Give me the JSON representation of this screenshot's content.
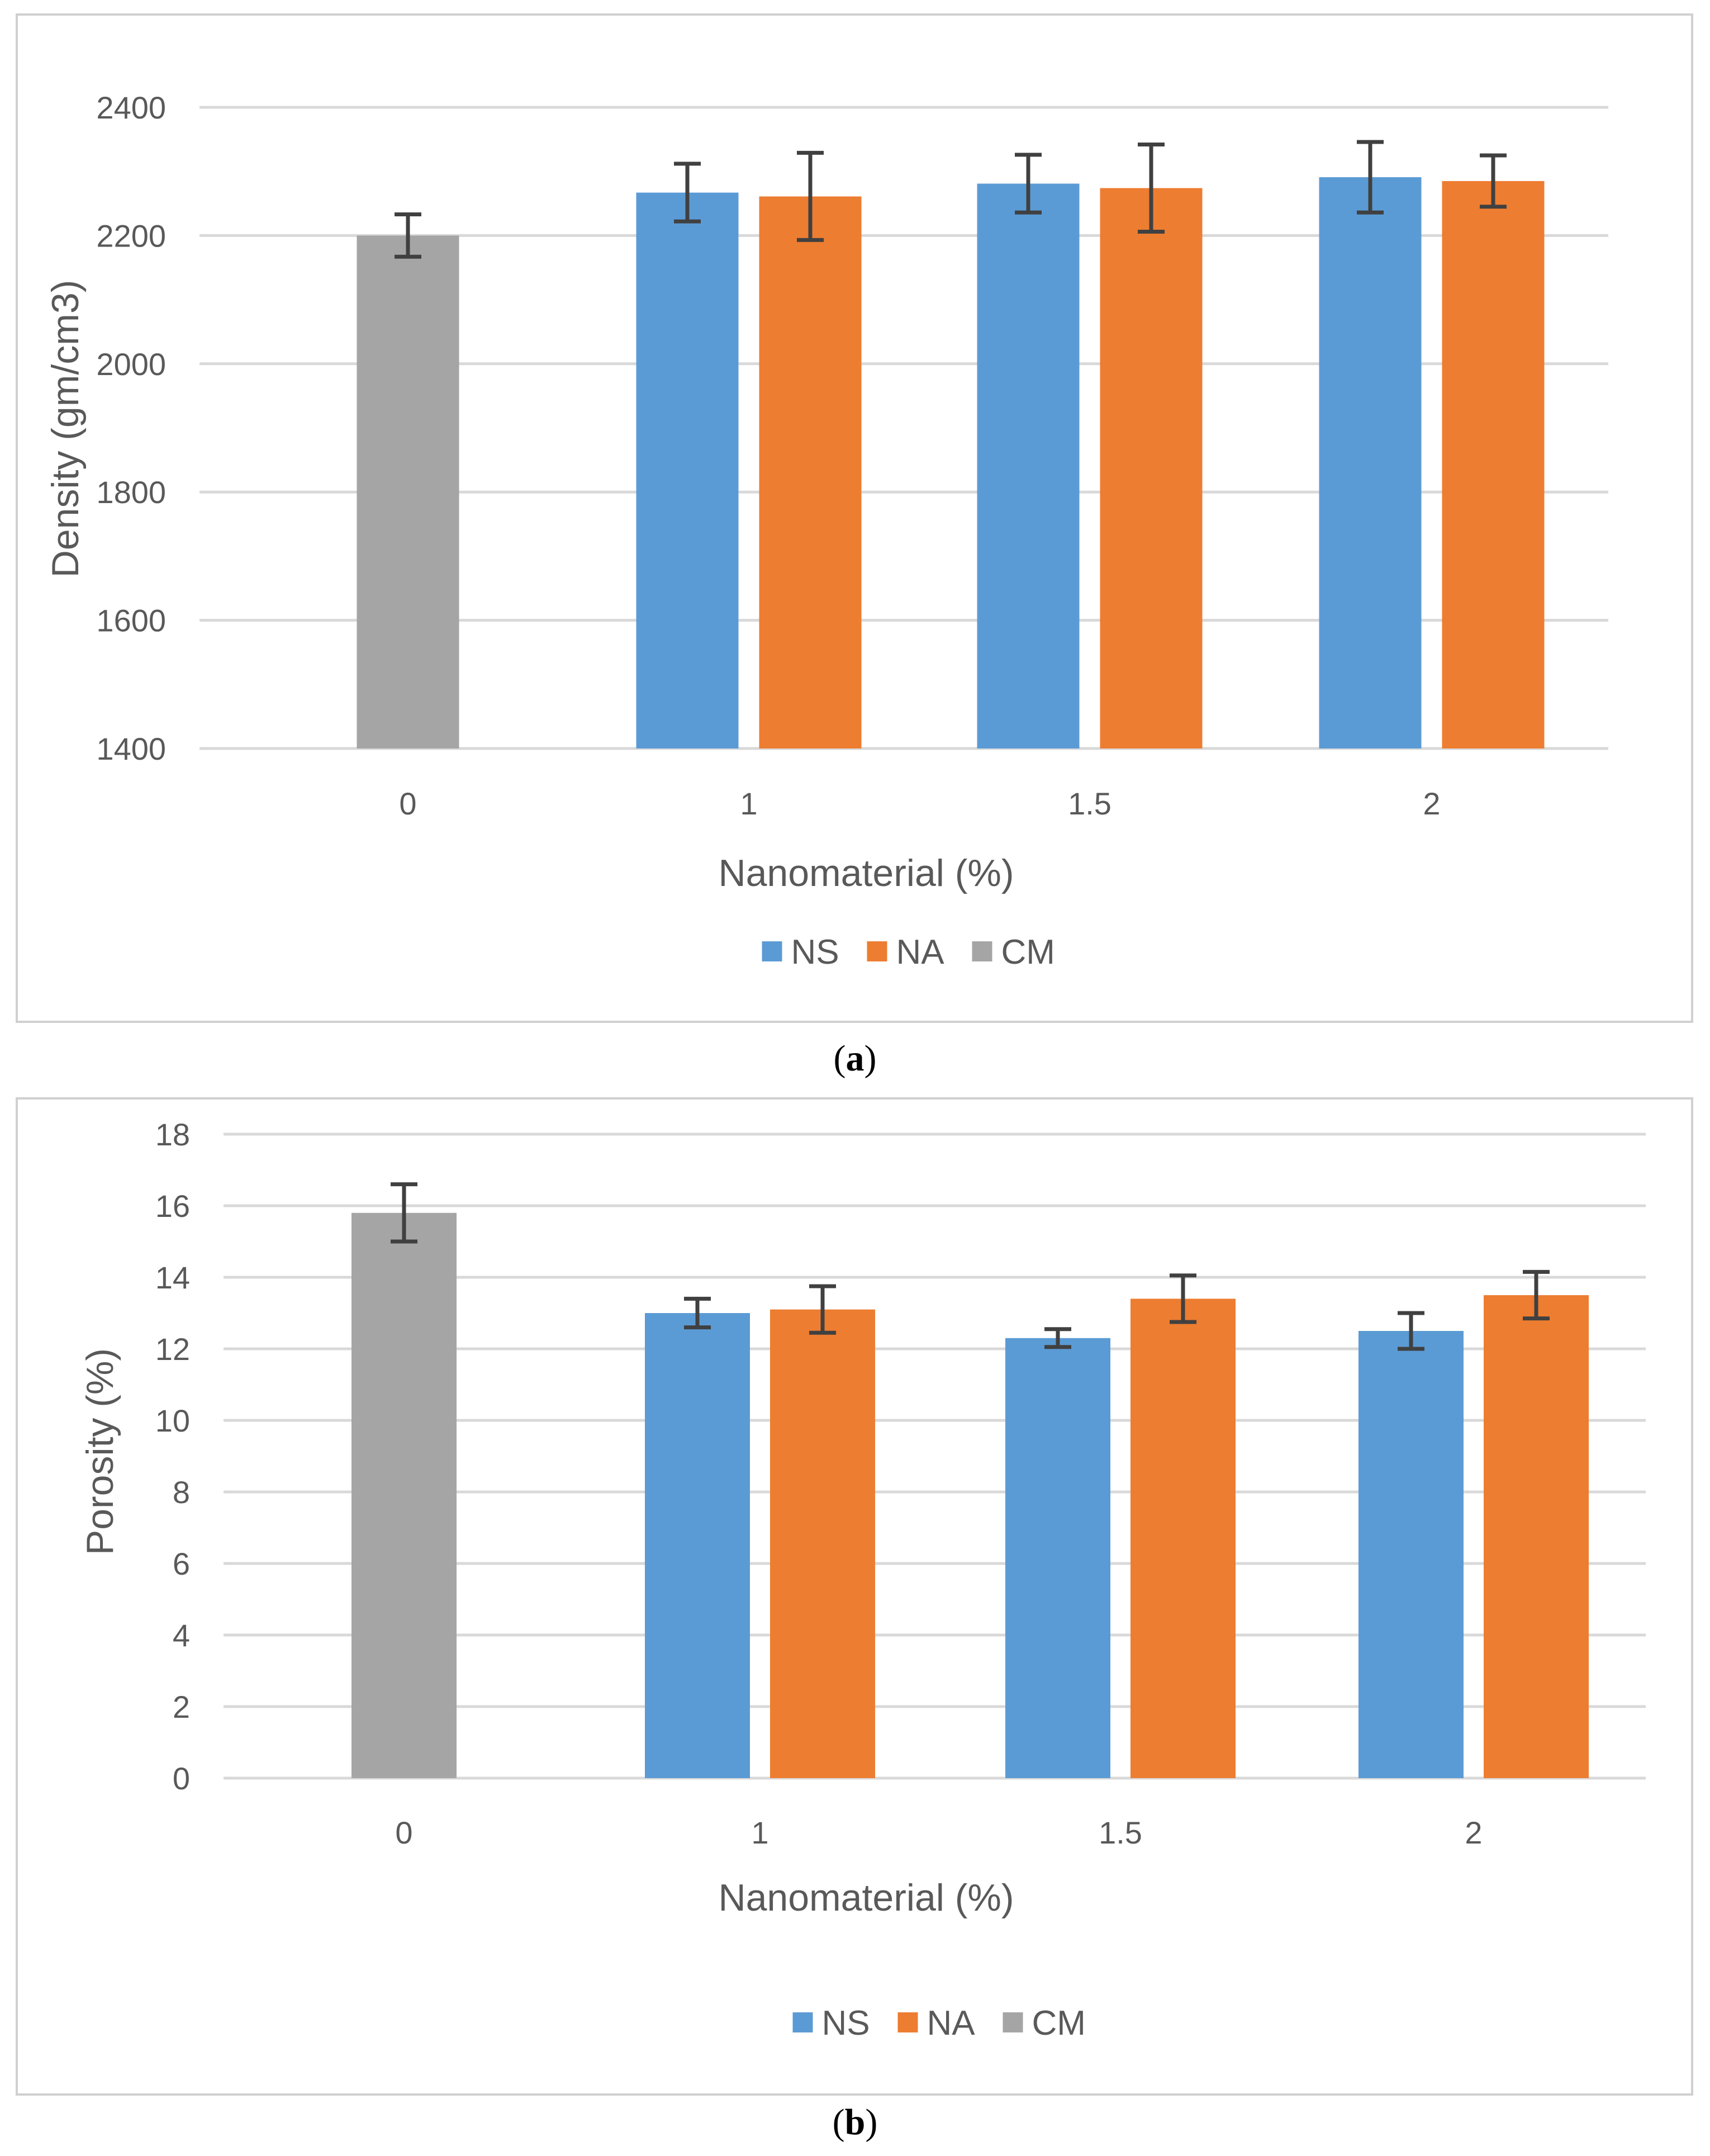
{
  "chart_data": [
    {
      "type": "bar",
      "panel_label": "a",
      "title": "",
      "xlabel": "Nanomaterial (%)",
      "ylabel": "Density (gm/cm3)",
      "ylim": [
        1400,
        2400
      ],
      "yticks": [
        1400,
        1600,
        1800,
        2000,
        2200,
        2400
      ],
      "categories": [
        "0",
        "1",
        "1.5",
        "2"
      ],
      "grid": true,
      "legend_position": "bottom",
      "series": [
        {
          "name": "NS",
          "color": "#5B9BD5",
          "values": [
            null,
            2267,
            2281,
            2291
          ],
          "errors": [
            null,
            45,
            45,
            55
          ]
        },
        {
          "name": "NA",
          "color": "#ED7D31",
          "values": [
            null,
            2261,
            2274,
            2285
          ],
          "errors": [
            null,
            68,
            68,
            40
          ]
        },
        {
          "name": "CM",
          "color": "#A5A5A5",
          "values": [
            2200,
            null,
            null,
            null
          ],
          "errors": [
            33,
            null,
            null,
            null
          ]
        }
      ]
    },
    {
      "type": "bar",
      "panel_label": "b",
      "title": "",
      "xlabel": "Nanomaterial (%)",
      "ylabel": "Porosity (%)",
      "ylim": [
        0,
        18
      ],
      "yticks": [
        0,
        2,
        4,
        6,
        8,
        10,
        12,
        14,
        16,
        18
      ],
      "categories": [
        "0",
        "1",
        "1.5",
        "2"
      ],
      "grid": true,
      "legend_position": "bottom",
      "series": [
        {
          "name": "NS",
          "color": "#5B9BD5",
          "values": [
            null,
            13.0,
            12.3,
            12.5
          ],
          "errors": [
            null,
            0.4,
            0.25,
            0.5
          ]
        },
        {
          "name": "NA",
          "color": "#ED7D31",
          "values": [
            null,
            13.1,
            13.4,
            13.5
          ],
          "errors": [
            null,
            0.65,
            0.65,
            0.65
          ]
        },
        {
          "name": "CM",
          "color": "#A5A5A5",
          "values": [
            15.8,
            null,
            null,
            null
          ],
          "errors": [
            0.8,
            null,
            null,
            null
          ]
        }
      ]
    }
  ],
  "captions": [
    "(a)",
    "(b)"
  ]
}
